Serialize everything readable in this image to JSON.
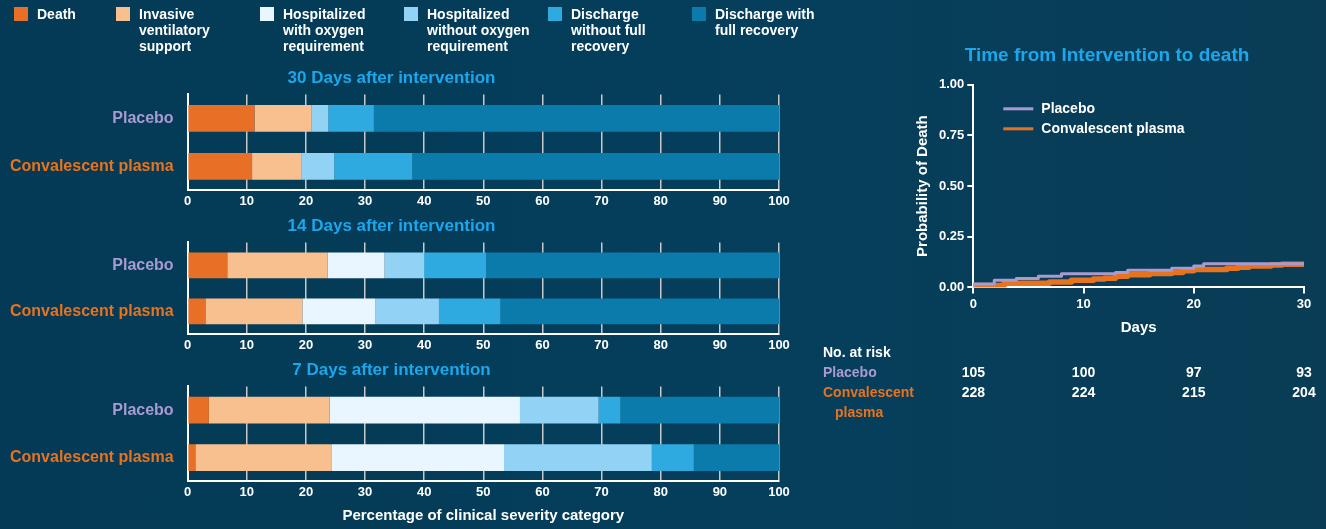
{
  "chart_data": [
    {
      "type": "bar",
      "title": "30 Days after intervention",
      "orientation": "horizontal",
      "stacked": true,
      "categories": [
        "Placebo",
        "Convalescent plasma"
      ],
      "legend": "top",
      "grid": "x",
      "xlim": [
        0,
        100
      ],
      "xticks": [
        0,
        10,
        20,
        30,
        40,
        50,
        60,
        70,
        80,
        90,
        100
      ],
      "series": [
        {
          "name": "Death",
          "color": "#e87026",
          "values": [
            11.3,
            10.9
          ]
        },
        {
          "name": "Invasive ventilatory support",
          "color": "#f9c08f",
          "values": [
            9.6,
            8.3
          ]
        },
        {
          "name": "Hospitalized with oxygen requirement",
          "color": "#e9f6ff",
          "values": [
            0,
            0
          ]
        },
        {
          "name": "Hospitalized without oxygen requirement",
          "color": "#92d3f5",
          "values": [
            2.9,
            5.6
          ]
        },
        {
          "name": "Discharge without full recovery",
          "color": "#2eaae1",
          "values": [
            7.7,
            13.2
          ]
        },
        {
          "name": "Discharge with full recovery",
          "color": "#0b7bab",
          "values": [
            68.5,
            62.0
          ]
        }
      ]
    },
    {
      "type": "bar",
      "title": "14 Days after intervention",
      "orientation": "horizontal",
      "stacked": true,
      "categories": [
        "Placebo",
        "Convalescent plasma"
      ],
      "grid": "x",
      "xlim": [
        0,
        100
      ],
      "xticks": [
        0,
        10,
        20,
        30,
        40,
        50,
        60,
        70,
        80,
        90,
        100
      ],
      "series": [
        {
          "color": "#e87026",
          "values": [
            6.7,
            3.0
          ]
        },
        {
          "color": "#f9c08f",
          "values": [
            17.0,
            16.4
          ]
        },
        {
          "color": "#e9f6ff",
          "values": [
            9.6,
            12.3
          ]
        },
        {
          "color": "#92d3f5",
          "values": [
            6.7,
            10.8
          ]
        },
        {
          "color": "#2eaae1",
          "values": [
            10.5,
            10.4
          ]
        },
        {
          "color": "#0b7bab",
          "values": [
            49.5,
            47.1
          ]
        }
      ]
    },
    {
      "type": "bar",
      "title": "7 Days after intervention",
      "orientation": "horizontal",
      "stacked": true,
      "categories": [
        "Placebo",
        "Convalescent plasma"
      ],
      "grid": "x",
      "xlim": [
        0,
        100
      ],
      "xticks": [
        0,
        10,
        20,
        30,
        40,
        50,
        60,
        70,
        80,
        90,
        100
      ],
      "xlabel": "Percentage of clinical severity category",
      "series": [
        {
          "color": "#e87026",
          "values": [
            3.6,
            1.3
          ]
        },
        {
          "color": "#f9c08f",
          "values": [
            20.4,
            23.1
          ]
        },
        {
          "color": "#e9f6ff",
          "values": [
            32.2,
            29.1
          ]
        },
        {
          "color": "#92d3f5",
          "values": [
            13.3,
            25.0
          ]
        },
        {
          "color": "#2eaae1",
          "values": [
            3.7,
            7.1
          ]
        },
        {
          "color": "#0b7bab",
          "values": [
            26.8,
            14.4
          ]
        }
      ]
    },
    {
      "type": "step",
      "title": "Time from Intervention to death",
      "xlabel": "Days",
      "ylabel": "Probability of Death",
      "legend": "top left",
      "grid": false,
      "xlim": [
        0,
        30
      ],
      "xticks": [
        0,
        10,
        20,
        30
      ],
      "ylim": [
        0,
        1
      ],
      "yticks": [
        {
          "value": 0,
          "label": "0.00"
        },
        {
          "value": 0.25,
          "label": "0.25"
        },
        {
          "value": 0.5,
          "label": "0.50"
        },
        {
          "value": 0.75,
          "label": "0.75"
        },
        {
          "value": 1,
          "label": "1.00"
        }
      ],
      "annotations": [
        "No. at risk",
        "105",
        "100",
        "97",
        "93",
        "228",
        "224",
        "215",
        "204"
      ],
      "series": [
        {
          "name": "Placebo",
          "color": "#a99bd0",
          "x": [
            0,
            1.9,
            3.9,
            5.9,
            8.0,
            12.9,
            14.0,
            18.0,
            20.0,
            20.9,
            22.0,
            30
          ],
          "values": [
            0,
            0.017,
            0.035,
            0.044,
            0.055,
            0.067,
            0.074,
            0.085,
            0.095,
            0.106,
            0.117,
            0.117
          ]
        },
        {
          "name": "Convalescent plasma",
          "color": "#e8731f",
          "x": [
            0,
            2.8,
            6.9,
            8.9,
            10.9,
            11.9,
            12.9,
            14.0,
            16.0,
            18.0,
            19.0,
            20.0,
            23.0,
            24.0,
            25.0,
            27.0,
            28.0,
            29.0,
            30
          ],
          "values": [
            0,
            0.009,
            0.02,
            0.027,
            0.035,
            0.041,
            0.045,
            0.055,
            0.062,
            0.068,
            0.074,
            0.082,
            0.088,
            0.094,
            0.1,
            0.106,
            0.11,
            0.114,
            0.114
          ]
        }
      ]
    }
  ]
}
